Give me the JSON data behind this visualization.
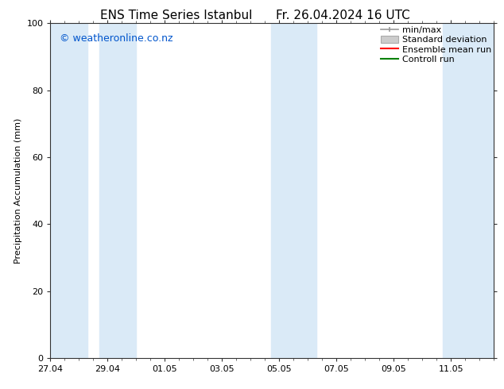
{
  "title_left": "ENS Time Series Istanbul",
  "title_right": "Fr. 26.04.2024 16 UTC",
  "ylabel": "Precipitation Accumulation (mm)",
  "ylim": [
    0,
    100
  ],
  "yticks": [
    0,
    20,
    40,
    60,
    80,
    100
  ],
  "xtick_labels": [
    "27.04",
    "29.04",
    "01.05",
    "03.05",
    "05.05",
    "07.05",
    "09.05",
    "11.05"
  ],
  "xtick_positions": [
    0,
    2,
    4,
    6,
    8,
    10,
    12,
    14
  ],
  "xlim": [
    0,
    15.5
  ],
  "watermark": "© weatheronline.co.nz",
  "watermark_color": "#0055cc",
  "bg_color": "#ffffff",
  "plot_bg_color": "#ffffff",
  "shaded_band_color": "#daeaf7",
  "shaded_bands": [
    [
      0.0,
      1.3
    ],
    [
      1.7,
      3.0
    ],
    [
      7.7,
      9.3
    ],
    [
      13.7,
      15.5
    ]
  ],
  "legend_labels": [
    "min/max",
    "Standard deviation",
    "Ensemble mean run",
    "Controll run"
  ],
  "legend_colors_line": [
    "#aaaaaa",
    "#bbbbbb",
    "#ff0000",
    "#008000"
  ],
  "title_fontsize": 11,
  "axis_label_fontsize": 8,
  "tick_fontsize": 8,
  "watermark_fontsize": 9,
  "legend_fontsize": 8
}
